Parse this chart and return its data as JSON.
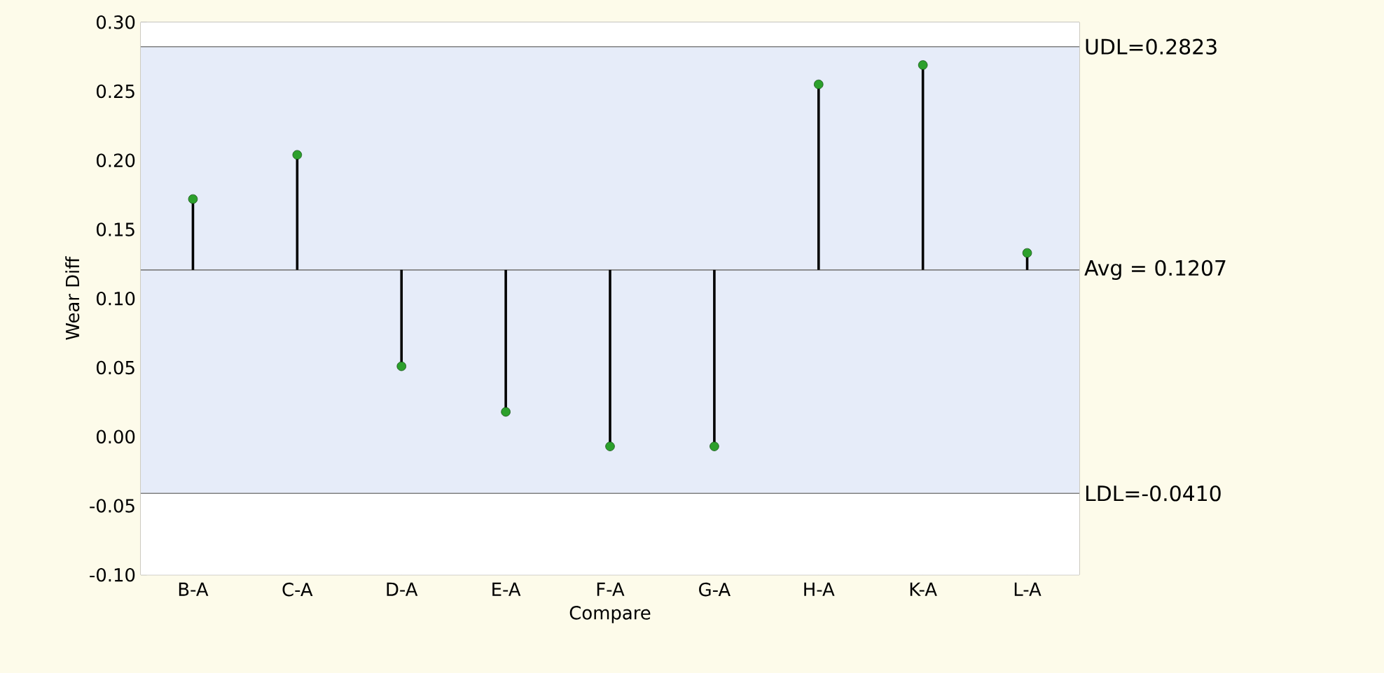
{
  "chart_data": {
    "type": "scatter",
    "xlabel": "Compare",
    "ylabel": "Wear Diff",
    "categories": [
      "B-A",
      "C-A",
      "D-A",
      "E-A",
      "F-A",
      "G-A",
      "H-A",
      "K-A",
      "L-A"
    ],
    "series": [
      {
        "color": "#2ca02c",
        "values": [
          0.172,
          0.204,
          0.051,
          0.018,
          -0.007,
          -0.007,
          0.255,
          0.269,
          0.133
        ],
        "errors": [
          [
            0.1207,
            0.172
          ],
          [
            0.1207,
            0.204
          ],
          [
            0.051,
            0.1207
          ],
          [
            0.018,
            0.1207
          ],
          [
            -0.007,
            0.1207
          ],
          [
            -0.007,
            0.1207
          ],
          [
            0.1207,
            0.255
          ],
          [
            0.1207,
            0.269
          ],
          [
            0.1207,
            0.133
          ]
        ]
      }
    ],
    "marker": "circle",
    "ylim": [
      -0.1,
      0.3
    ],
    "yticks": [
      {
        "value": -0.1,
        "label": "-0.10"
      },
      {
        "value": -0.05,
        "label": "-0.05"
      },
      {
        "value": 0,
        "label": "0.00"
      },
      {
        "value": 0.05,
        "label": "0.05"
      },
      {
        "value": 0.1,
        "label": "0.10"
      },
      {
        "value": 0.15,
        "label": "0.15"
      },
      {
        "value": 0.2,
        "label": "0.20"
      },
      {
        "value": 0.25,
        "label": "0.25"
      },
      {
        "value": 0.3,
        "label": "0.30"
      }
    ],
    "ref_lines": [
      {
        "axis": "y",
        "value": 0.2823,
        "label": "UDL=0.2823",
        "color": "#808080"
      },
      {
        "axis": "y",
        "value": 0.1207,
        "label": "Avg = 0.1207",
        "color": "#808080"
      },
      {
        "axis": "y",
        "value": -0.041,
        "label": "LDL=-0.0410",
        "color": "#808080"
      }
    ],
    "bands": [
      {
        "axis": "y",
        "from": -0.041,
        "to": 0.2823,
        "color": "#e6ecf9"
      }
    ]
  }
}
